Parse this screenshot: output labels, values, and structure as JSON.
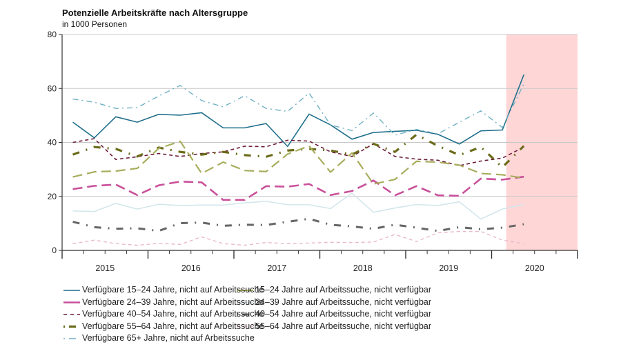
{
  "chart_data": {
    "type": "line",
    "title": "Potenzielle Arbeitskräfte nach Altersgruppe",
    "subtitle": "in 1000 Personen",
    "xlabel": "",
    "ylabel": "",
    "xlim": [
      2015,
      2021
    ],
    "ylim": [
      0,
      80
    ],
    "yticks": [
      0,
      20,
      40,
      60,
      80
    ],
    "xtick_labels": [
      "2015",
      "2016",
      "2017",
      "2018",
      "2019",
      "2020"
    ],
    "grid": "horizontal",
    "legend_position": "bottom",
    "highlight": {
      "from": 2020.17,
      "to": 2021,
      "color": "#ffd6d6"
    },
    "x": [
      "2015 Q1",
      "2015 Q2",
      "2015 Q3",
      "2015 Q4",
      "2016 Q1",
      "2016 Q2",
      "2016 Q3",
      "2016 Q4",
      "2017 Q1",
      "2017 Q2",
      "2017 Q3",
      "2017 Q4",
      "2018 Q1",
      "2018 Q2",
      "2018 Q3",
      "2018 Q4",
      "2019 Q1",
      "2019 Q2",
      "2019 Q3",
      "2019 Q4",
      "2020 Q1",
      "2020 Q2"
    ],
    "series": [
      {
        "name": "Verfügbare 15–24 Jahre, nicht auf Arbeitssuche",
        "color": "#1f6f8b",
        "dash": "solid",
        "width": 1.6,
        "values": [
          47.5,
          41.7,
          49.5,
          47.5,
          50.4,
          50.1,
          51.0,
          45.4,
          45.4,
          47.0,
          38.5,
          50.5,
          46.5,
          41.2,
          43.7,
          44.1,
          44.5,
          43.0,
          39.4,
          44.3,
          44.6,
          65.1
        ]
      },
      {
        "name": "Verfügbare 24–39 Jahre, nicht auf Arbeitssuche",
        "color": "#c9509a",
        "dash": "longdash",
        "width": 2.6,
        "values": [
          22.7,
          23.9,
          24.4,
          20.5,
          24.1,
          25.5,
          25.2,
          18.7,
          18.7,
          23.8,
          23.6,
          24.6,
          20.5,
          22.0,
          25.9,
          20.4,
          23.8,
          20.4,
          20.2,
          26.6,
          26.2,
          27.3
        ]
      },
      {
        "name": "Verfügbare 40–54 Jahre, nicht auf Arbeitssuche",
        "color": "#6b1a3a",
        "dash": "dash",
        "width": 1.6,
        "values": [
          40.0,
          41.4,
          33.7,
          34.7,
          35.9,
          34.8,
          35.9,
          36.5,
          38.6,
          38.4,
          40.8,
          40.5,
          36.5,
          34.8,
          39.5,
          34.8,
          33.8,
          33.4,
          31.4,
          33.1,
          34.2,
          38.3
        ]
      },
      {
        "name": "Verfügbare 55–64 Jahre, nicht auf Arbeitssuche",
        "color": "#6b6b1a",
        "dash": "dashdot-thick",
        "width": 3.2,
        "values": [
          35.5,
          38.3,
          37.6,
          34.8,
          38.1,
          36.5,
          35.5,
          36.5,
          35.3,
          34.7,
          37.0,
          37.6,
          37.0,
          35.5,
          39.5,
          36.5,
          42.9,
          38.7,
          35.3,
          38.3,
          30.8,
          38.7
        ]
      },
      {
        "name": "Verfügbare 65+ Jahre, nicht auf Arbeitssuche",
        "color": "#6fb0c4",
        "dash": "dashdot",
        "width": 1.4,
        "values": [
          56.1,
          54.9,
          52.6,
          52.9,
          57.2,
          61.1,
          55.5,
          53.2,
          57.3,
          52.6,
          51.5,
          58.3,
          46.5,
          44.4,
          50.9,
          42.7,
          44.8,
          43.2,
          47.5,
          51.7,
          45.5,
          61.7
        ]
      },
      {
        "name": "15–24 Jahre auf Arbeitssuche, nicht verfügbar",
        "color": "#a8ad5c",
        "dash": "longdash",
        "width": 2.2,
        "values": [
          27.2,
          29.1,
          29.4,
          30.4,
          37.8,
          40.4,
          28.5,
          32.7,
          29.6,
          29.2,
          35.7,
          38.7,
          29.0,
          36.1,
          24.6,
          26.3,
          33.0,
          32.7,
          31.6,
          28.5,
          28.0,
          26.8
        ]
      },
      {
        "name": "24–39 Jahre auf Arbeitssuche, nicht verfügbar",
        "color": "#d3e6ec",
        "dash": "solid",
        "width": 1.6,
        "values": [
          14.6,
          14.4,
          17.4,
          15.3,
          17.1,
          16.6,
          16.8,
          16.8,
          17.6,
          18.2,
          16.9,
          16.9,
          15.5,
          21.2,
          14.1,
          15.7,
          17.0,
          16.6,
          18.0,
          11.6,
          15.3,
          17.0
        ]
      },
      {
        "name": "40–54 Jahre auf Arbeitssuche, nicht verfügbar",
        "color": "#666666",
        "dash": "dashdot-thick",
        "width": 3.0,
        "values": [
          10.6,
          8.6,
          8.0,
          8.2,
          7.2,
          10.1,
          10.3,
          9.1,
          9.5,
          9.4,
          10.6,
          11.7,
          9.5,
          8.9,
          8.0,
          9.5,
          8.4,
          7.2,
          8.6,
          7.8,
          8.4,
          9.7
        ]
      },
      {
        "name": "55–64 Jahre auf Arbeitssuche, nicht verfügbar",
        "color": "#e9b8cc",
        "dash": "dash",
        "width": 1.4,
        "values": [
          2.5,
          3.8,
          2.5,
          1.9,
          2.6,
          2.2,
          5.0,
          2.5,
          1.9,
          2.9,
          2.5,
          2.7,
          3.0,
          2.9,
          3.1,
          5.9,
          3.3,
          6.5,
          7.0,
          7.0,
          3.8,
          2.5
        ]
      }
    ]
  }
}
